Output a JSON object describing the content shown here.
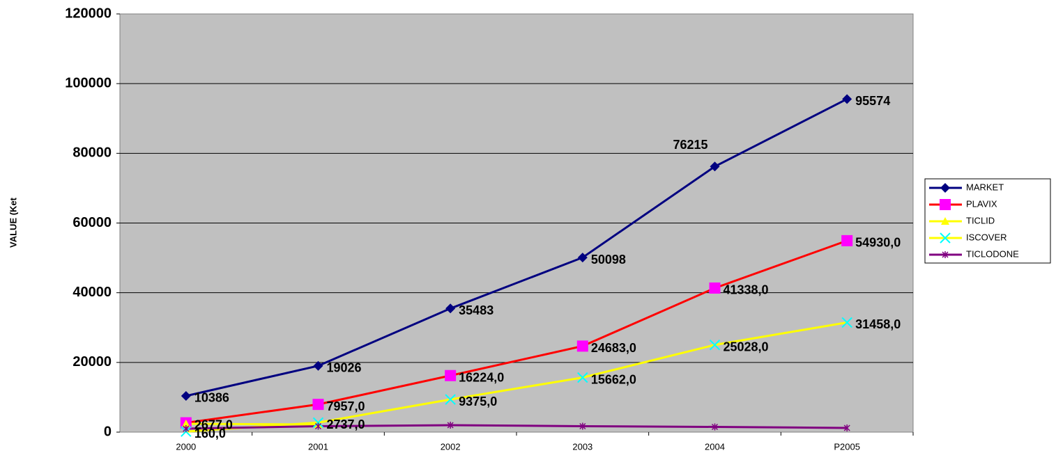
{
  "chart_data": {
    "type": "line",
    "y_label": "VALUE (Ket",
    "categories": [
      "2000",
      "2001",
      "2002",
      "2003",
      "2004",
      "P2005"
    ],
    "series": [
      {
        "name": "MARKET",
        "color": "#000080",
        "marker": "diamond",
        "values": [
          10386,
          19026,
          35483,
          50098,
          76215,
          95574
        ]
      },
      {
        "name": "PLAVIX",
        "color": "#ff0000",
        "marker_color": "#ff00ff",
        "marker": "square",
        "values": [
          2677,
          7957,
          16224,
          24683,
          41338,
          54930
        ],
        "value_labels": [
          "2677,0",
          "7957,0",
          "16224,0",
          "24683,0",
          "41338,0",
          "54930,0"
        ]
      },
      {
        "name": "TICLID",
        "color": "#ffff00",
        "marker": "triangle",
        "values": [
          2400,
          2200,
          null,
          null,
          null,
          null
        ]
      },
      {
        "name": "ISCOVER",
        "color": "#ffff00",
        "marker_color": "#00ffff",
        "marker": "x",
        "values": [
          160,
          2737,
          9375,
          15662,
          25028,
          31458
        ],
        "value_labels": [
          "160,0",
          "2737,0",
          "9375,0",
          "15662,0",
          "25028,0",
          "31458,0"
        ]
      },
      {
        "name": "TICLODONE",
        "color": "#800080",
        "marker": "star",
        "values": [
          1000,
          1700,
          2000,
          1700,
          1500,
          1200
        ]
      }
    ],
    "ylim": [
      0,
      120000
    ],
    "yticks": [
      0,
      20000,
      40000,
      60000,
      80000,
      100000,
      120000
    ],
    "grid": true
  }
}
